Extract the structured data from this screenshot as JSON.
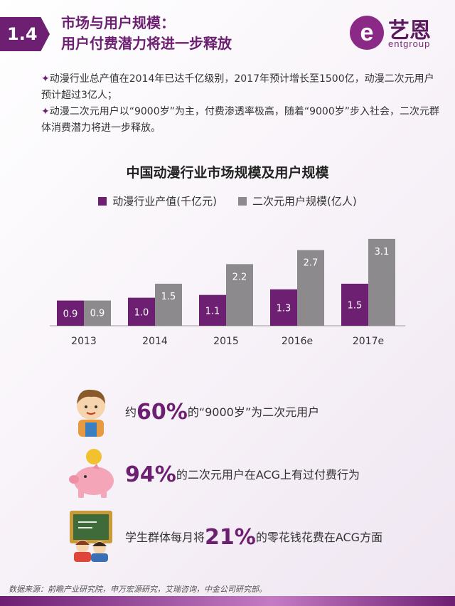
{
  "header": {
    "badge": "1.4",
    "title_line1": "市场与用户规模：",
    "title_line2": "用户付费潜力将进一步释放"
  },
  "logo": {
    "mark": "e",
    "cn": "艺恩",
    "en": "entgroup"
  },
  "bullets": [
    {
      "star": "✦",
      "text": "动漫行业总产值在2014年已达千亿级别，2017年预计增长至1500亿，动漫二次元用户预计超过3亿人；"
    },
    {
      "star": "✦",
      "text": "动漫二次元用户以“9000岁”为主，付费渗透率极高，随着“9000岁”步入社会，二次元群体消费潜力将进一步释放。"
    }
  ],
  "chart_data": {
    "type": "bar",
    "title": "中国动漫行业市场规模及用户规模",
    "categories": [
      "2013",
      "2014",
      "2015",
      "2016e",
      "2017e"
    ],
    "series": [
      {
        "name": "动漫行业产值(千亿元)",
        "values": [
          0.9,
          1.0,
          1.1,
          1.3,
          1.5
        ],
        "color": "#6d1f72"
      },
      {
        "name": "二次元用户规模(亿人)",
        "values": [
          0.9,
          1.5,
          2.2,
          2.7,
          3.1
        ],
        "color": "#8c8a8d"
      }
    ],
    "ylim": [
      0,
      3.3
    ],
    "grid": false,
    "legend_position": "top"
  },
  "stats": [
    {
      "icon": "boy-avatar-icon",
      "prefix": "约",
      "big": "60%",
      "suffix": "的“9000岁”为二次元用户"
    },
    {
      "icon": "piggy-bank-icon",
      "prefix": "",
      "big": "94%",
      "suffix": "的二次元用户在ACG上有过付费行为"
    },
    {
      "icon": "students-blackboard-icon",
      "prefix": "学生群体每月将",
      "big": "21%",
      "suffix": "的零花钱花费在ACG方面"
    }
  ],
  "footer": {
    "source": "数据来源：前瞻产业研究院，申万宏源研究，艾瑞咨询，中金公司研究部。"
  }
}
